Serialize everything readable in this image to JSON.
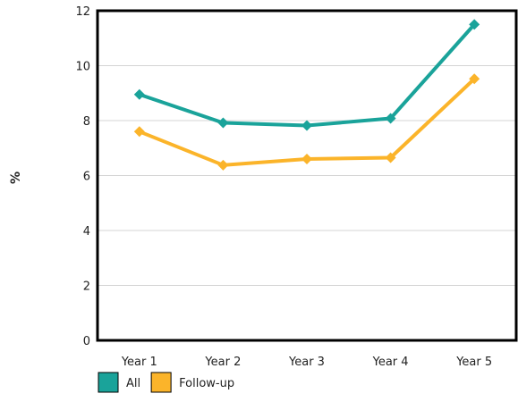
{
  "chart_data": {
    "type": "line",
    "categories": [
      "Year 1",
      "Year 2",
      "Year 3",
      "Year 4",
      "Year 5"
    ],
    "series": [
      {
        "name": "All",
        "values": [
          8.95,
          7.92,
          7.82,
          8.08,
          11.5
        ],
        "color": "#1aa39a"
      },
      {
        "name": "Follow-up",
        "values": [
          7.6,
          6.38,
          6.6,
          6.65,
          9.52
        ],
        "color": "#fbb42a"
      }
    ],
    "ylabel": "%",
    "ylim": [
      0,
      12
    ],
    "yticks": [
      "0",
      "2",
      "4",
      "6",
      "8",
      "10",
      "12"
    ],
    "grid": true,
    "legend": "bottom-left",
    "marker": "diamond"
  }
}
